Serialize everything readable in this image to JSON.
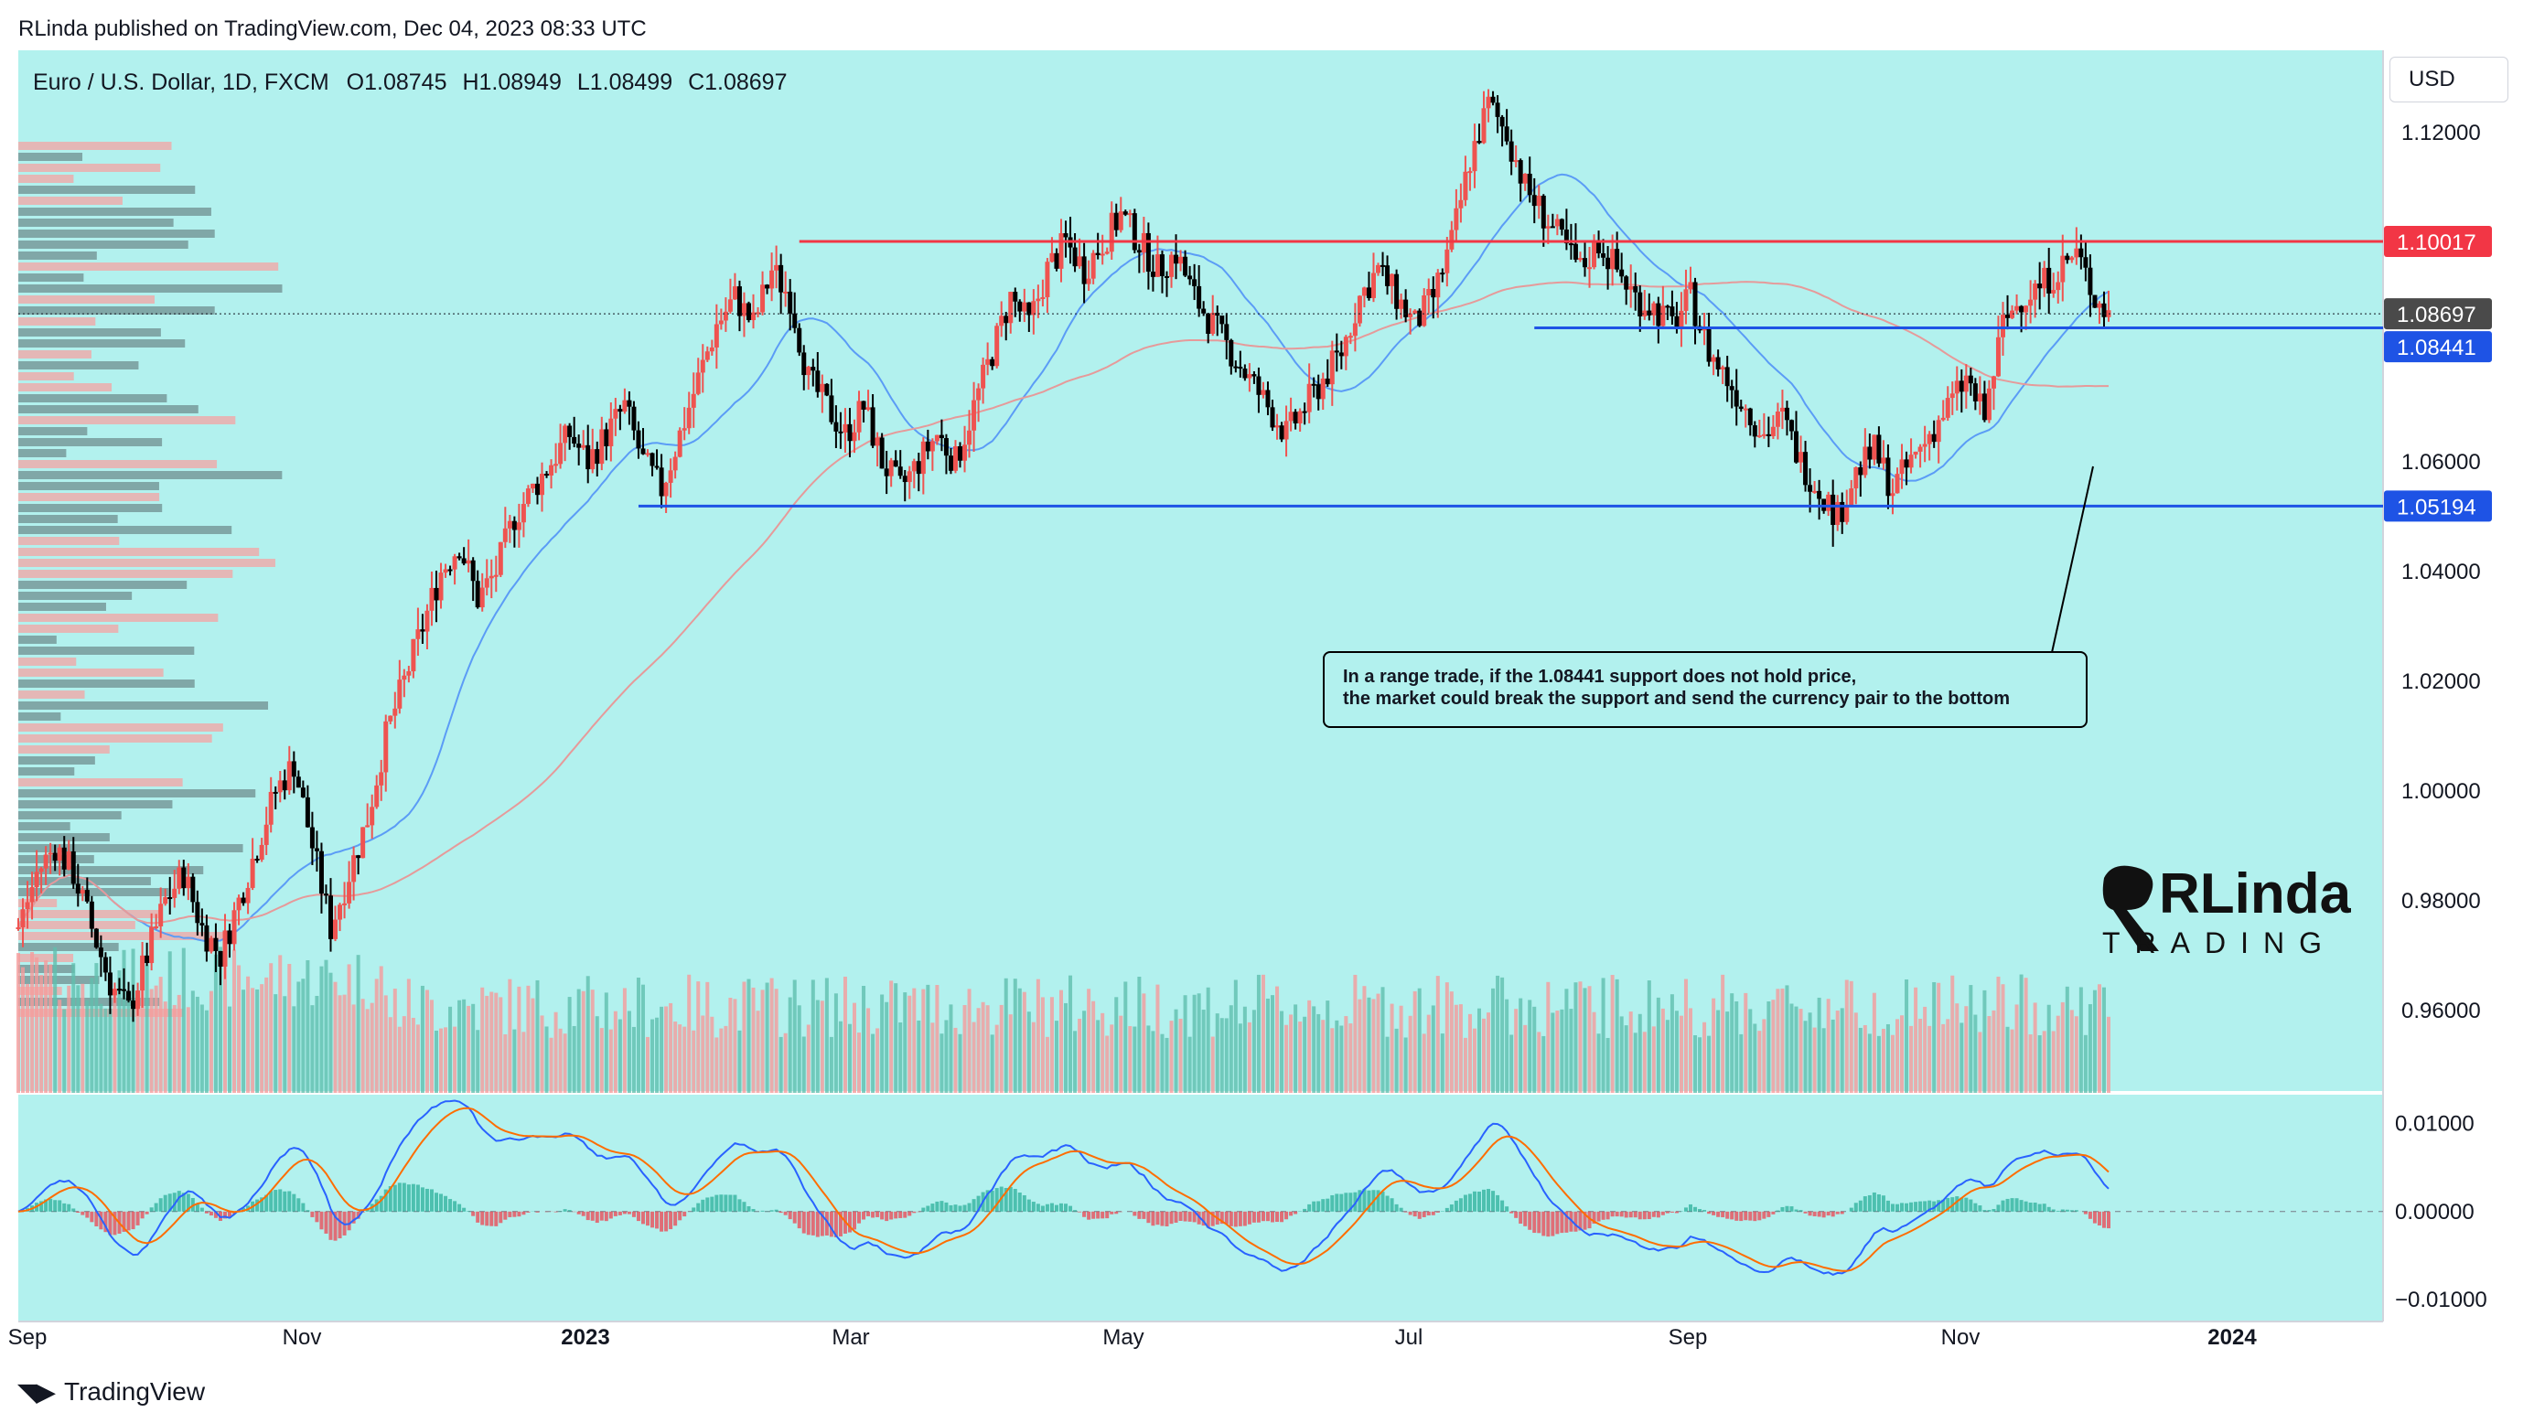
{
  "header": {
    "published": "RLinda published on TradingView.com, Dec 04, 2023 08:33 UTC"
  },
  "symbol": {
    "name": "Euro / U.S. Dollar, 1D, FXCM",
    "open": "O1.08745",
    "high": "H1.08949",
    "low": "L1.08499",
    "close": "C1.08697"
  },
  "currency_button": "USD",
  "colors": {
    "background": "#b2f1ee",
    "bull": "#ef5350",
    "bear": "#000000",
    "resistance": "#f23645",
    "support": "#1e53e5",
    "ma_fast": "#5b9cf6",
    "ma_slow": "#e69a9a",
    "macd": "#2962ff",
    "signal": "#ff6d00",
    "hist_pos": "#22ab94",
    "hist_neg": "#f23645"
  },
  "levels": {
    "resistance": "1.10017",
    "current": "1.08697",
    "support_near": "1.08441",
    "support_low": "1.05194"
  },
  "annotation": {
    "line1": "In a range trade, if the 1.08441 support does not hold price,",
    "line2": "the market could break the support and send the currency pair to the bottom"
  },
  "logo": {
    "text_top": "RLinda",
    "text_bottom": "TRADING"
  },
  "footer": {
    "brand": "TradingView"
  },
  "chart_data": {
    "type": "candlestick",
    "title": "Euro / U.S. Dollar, 1D, FXCM",
    "price_ticks": [
      "1.12000",
      "1.06000",
      "1.04000",
      "1.02000",
      "1.00000",
      "0.98000",
      "0.96000"
    ],
    "macd_ticks": [
      "0.01000",
      "0.00000",
      "−0.01000"
    ],
    "time_ticks": [
      "Sep",
      "Nov",
      "2023",
      "Mar",
      "May",
      "Jul",
      "Sep",
      "Nov",
      "2024"
    ],
    "ylim": [
      0.945,
      1.135
    ],
    "macd_ylim": [
      -0.0125,
      0.0135
    ],
    "horizontal_levels": [
      1.10017,
      1.08441,
      1.05194
    ],
    "close_path": [
      [
        0,
        0.975
      ],
      [
        4,
        0.985
      ],
      [
        8,
        0.99
      ],
      [
        12,
        0.985
      ],
      [
        16,
        0.975
      ],
      [
        20,
        0.965
      ],
      [
        24,
        0.96
      ],
      [
        28,
        0.97
      ],
      [
        32,
        0.98
      ],
      [
        36,
        0.985
      ],
      [
        40,
        0.975
      ],
      [
        44,
        0.97
      ],
      [
        48,
        0.98
      ],
      [
        52,
        0.99
      ],
      [
        56,
        1.0
      ],
      [
        60,
        1.005
      ],
      [
        64,
        0.99
      ],
      [
        68,
        0.975
      ],
      [
        72,
        0.985
      ],
      [
        76,
        0.995
      ],
      [
        80,
        1.01
      ],
      [
        84,
        1.02
      ],
      [
        88,
        1.03
      ],
      [
        92,
        1.04
      ],
      [
        96,
        1.045
      ],
      [
        100,
        1.035
      ],
      [
        104,
        1.04
      ],
      [
        108,
        1.05
      ],
      [
        112,
        1.055
      ],
      [
        116,
        1.06
      ],
      [
        120,
        1.065
      ],
      [
        124,
        1.06
      ],
      [
        128,
        1.065
      ],
      [
        132,
        1.07
      ],
      [
        136,
        1.06
      ],
      [
        140,
        1.055
      ],
      [
        144,
        1.065
      ],
      [
        148,
        1.075
      ],
      [
        152,
        1.085
      ],
      [
        156,
        1.09
      ],
      [
        160,
        1.085
      ],
      [
        164,
        1.095
      ],
      [
        168,
        1.09
      ],
      [
        172,
        1.075
      ],
      [
        176,
        1.07
      ],
      [
        180,
        1.065
      ],
      [
        184,
        1.07
      ],
      [
        188,
        1.06
      ],
      [
        192,
        1.055
      ],
      [
        196,
        1.06
      ],
      [
        200,
        1.065
      ],
      [
        204,
        1.06
      ],
      [
        208,
        1.07
      ],
      [
        212,
        1.08
      ],
      [
        216,
        1.09
      ],
      [
        220,
        1.085
      ],
      [
        224,
        1.095
      ],
      [
        228,
        1.1
      ],
      [
        232,
        1.095
      ],
      [
        236,
        1.1
      ],
      [
        240,
        1.105
      ],
      [
        244,
        1.1
      ],
      [
        248,
        1.095
      ],
      [
        252,
        1.098
      ],
      [
        256,
        1.09
      ],
      [
        260,
        1.085
      ],
      [
        264,
        1.08
      ],
      [
        268,
        1.075
      ],
      [
        272,
        1.07
      ],
      [
        276,
        1.065
      ],
      [
        280,
        1.07
      ],
      [
        284,
        1.075
      ],
      [
        288,
        1.08
      ],
      [
        292,
        1.09
      ],
      [
        296,
        1.095
      ],
      [
        300,
        1.09
      ],
      [
        304,
        1.085
      ],
      [
        308,
        1.09
      ],
      [
        312,
        1.1
      ],
      [
        316,
        1.115
      ],
      [
        320,
        1.125
      ],
      [
        324,
        1.12
      ],
      [
        328,
        1.11
      ],
      [
        332,
        1.105
      ],
      [
        336,
        1.1
      ],
      [
        340,
        1.095
      ],
      [
        344,
        1.1
      ],
      [
        348,
        1.095
      ],
      [
        352,
        1.09
      ],
      [
        356,
        1.088
      ],
      [
        360,
        1.085
      ],
      [
        364,
        1.09
      ],
      [
        368,
        1.08
      ],
      [
        372,
        1.075
      ],
      [
        376,
        1.07
      ],
      [
        380,
        1.065
      ],
      [
        384,
        1.068
      ],
      [
        388,
        1.06
      ],
      [
        392,
        1.055
      ],
      [
        396,
        1.05
      ],
      [
        400,
        1.058
      ],
      [
        404,
        1.062
      ],
      [
        408,
        1.055
      ],
      [
        412,
        1.06
      ],
      [
        416,
        1.065
      ],
      [
        420,
        1.07
      ],
      [
        424,
        1.075
      ],
      [
        428,
        1.068
      ],
      [
        432,
        1.085
      ],
      [
        436,
        1.09
      ],
      [
        440,
        1.092
      ],
      [
        444,
        1.095
      ],
      [
        448,
        1.098
      ],
      [
        452,
        1.09
      ],
      [
        455,
        1.087
      ]
    ]
  }
}
